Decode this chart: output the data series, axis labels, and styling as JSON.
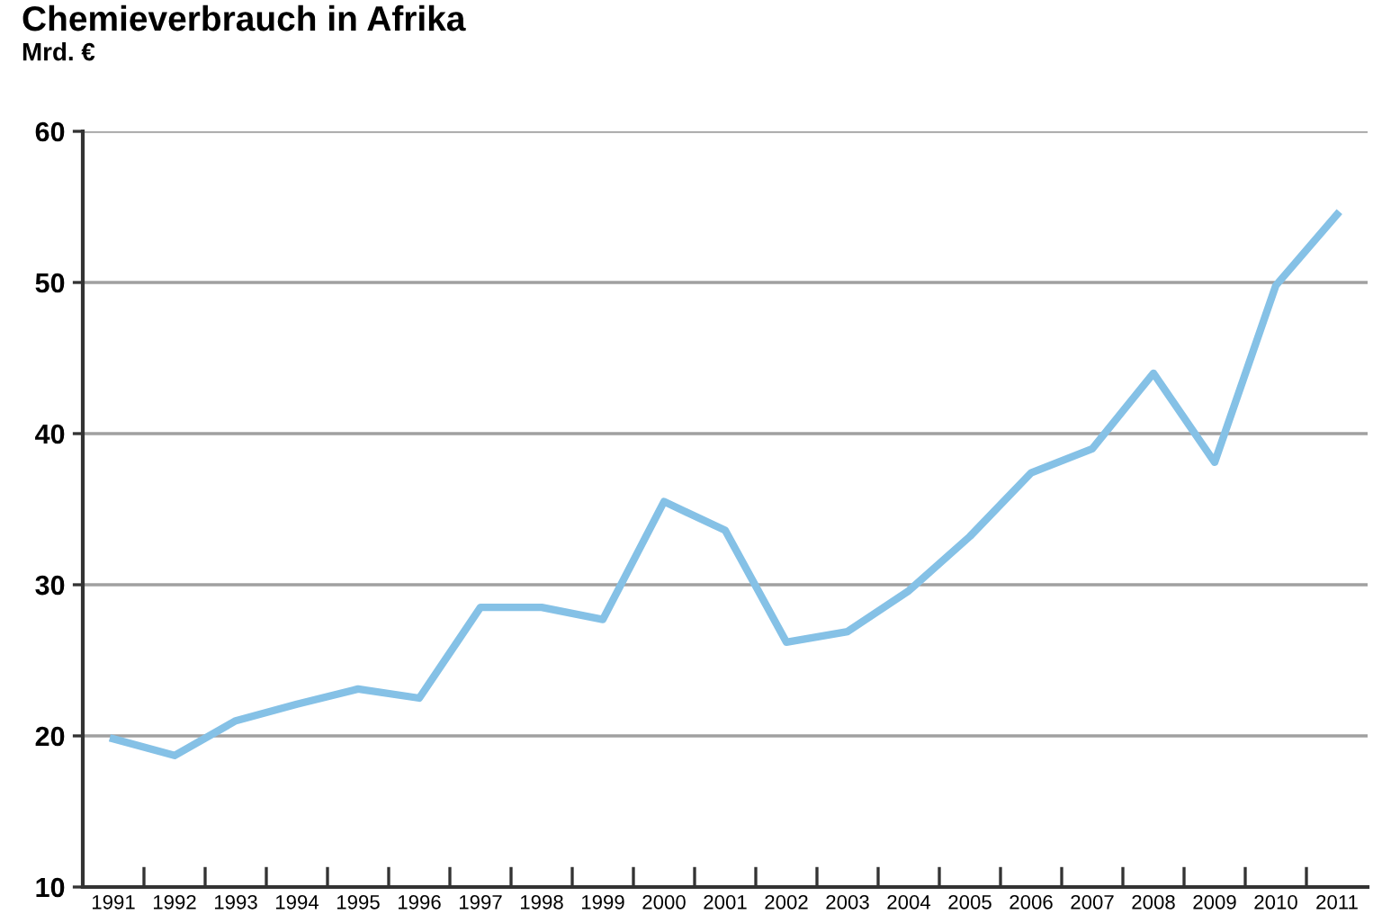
{
  "chart_data": {
    "type": "line",
    "title": "Chemieverbrauch in Afrika",
    "ylabel": "Mrd. €",
    "categories": [
      "1991",
      "1992",
      "1993",
      "1994",
      "1995",
      "1996",
      "1997",
      "1998",
      "1999",
      "2000",
      "2001",
      "2002",
      "2003",
      "2004",
      "2005",
      "2006",
      "2007",
      "2008",
      "2009",
      "2010",
      "2011"
    ],
    "series": [
      {
        "color": "#85c1e6",
        "values": [
          19.8,
          18.7,
          21.0,
          22.1,
          23.1,
          22.5,
          28.5,
          28.5,
          27.7,
          35.5,
          33.6,
          26.2,
          26.9,
          29.6,
          33.2,
          37.4,
          39.0,
          44.0,
          38.1,
          49.8,
          54.5
        ]
      }
    ],
    "ylim": [
      10,
      60
    ],
    "yticks": [
      10,
      20,
      30,
      40,
      50,
      60
    ],
    "grid": "y",
    "marker": "none",
    "line_style": "solid"
  }
}
